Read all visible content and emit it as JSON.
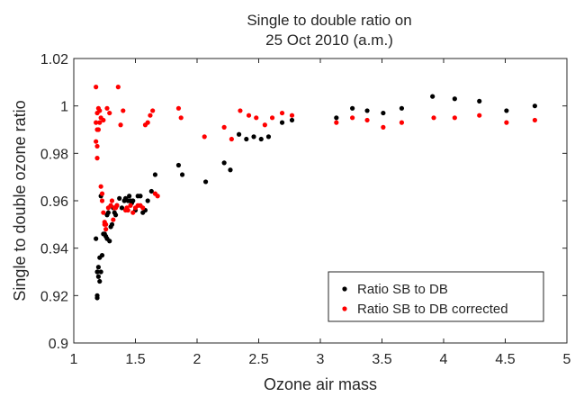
{
  "chart_data": {
    "type": "scatter",
    "title_lines": [
      "Single to double ratio on",
      "25  Oct 2010 (a.m.)"
    ],
    "xlabel": "Ozone air mass",
    "ylabel": "Single to double ozone ratio",
    "xlim": [
      1,
      5
    ],
    "ylim": [
      0.9,
      1.02
    ],
    "x_ticks": [
      1,
      1.5,
      2,
      2.5,
      3,
      3.5,
      4,
      4.5,
      5
    ],
    "x_tick_labels": [
      "1",
      "1.5",
      "2",
      "2.5",
      "3",
      "3.5",
      "4",
      "4.5",
      "5"
    ],
    "y_ticks": [
      0.9,
      0.92,
      0.94,
      0.96,
      0.98,
      1.0,
      1.02
    ],
    "y_tick_labels": [
      "0.9",
      "0.92",
      "0.94",
      "0.96",
      "0.98",
      "1",
      "1.02"
    ],
    "grid": false,
    "legend_position": "bottom-right",
    "series": [
      {
        "name": "Ratio SB to DB",
        "color": "#000000",
        "x": [
          1.18,
          1.19,
          1.19,
          1.19,
          1.2,
          1.2,
          1.21,
          1.21,
          1.22,
          1.22,
          1.23,
          1.24,
          1.25,
          1.26,
          1.27,
          1.27,
          1.28,
          1.29,
          1.3,
          1.31,
          1.32,
          1.33,
          1.34,
          1.35,
          1.37,
          1.39,
          1.41,
          1.42,
          1.44,
          1.45,
          1.46,
          1.47,
          1.48,
          1.5,
          1.52,
          1.54,
          1.56,
          1.58,
          1.6,
          1.63,
          1.66,
          1.85,
          1.88,
          2.07,
          2.22,
          2.27,
          2.34,
          2.4,
          2.46,
          2.52,
          2.58,
          2.69,
          2.77,
          3.13,
          3.26,
          3.38,
          3.51,
          3.66,
          3.91,
          4.09,
          4.29,
          4.51,
          4.74
        ],
        "y": [
          0.944,
          0.919,
          0.92,
          0.93,
          0.932,
          0.928,
          0.926,
          0.936,
          0.962,
          0.93,
          0.937,
          0.946,
          0.946,
          0.945,
          0.944,
          0.954,
          0.955,
          0.943,
          0.949,
          0.95,
          0.957,
          0.955,
          0.954,
          0.958,
          0.961,
          0.957,
          0.96,
          0.961,
          0.96,
          0.962,
          0.96,
          0.959,
          0.96,
          0.956,
          0.962,
          0.962,
          0.955,
          0.956,
          0.96,
          0.964,
          0.971,
          0.975,
          0.971,
          0.968,
          0.976,
          0.973,
          0.988,
          0.986,
          0.987,
          0.986,
          0.987,
          0.993,
          0.994,
          0.995,
          0.999,
          0.998,
          0.997,
          0.999,
          1.004,
          1.003,
          1.002,
          0.998,
          1.0
        ]
      },
      {
        "name": "Ratio SB to DB corrected",
        "color": "#ff0000",
        "x": [
          1.18,
          1.18,
          1.18,
          1.19,
          1.19,
          1.19,
          1.19,
          1.2,
          1.2,
          1.21,
          1.21,
          1.22,
          1.22,
          1.23,
          1.23,
          1.24,
          1.24,
          1.25,
          1.25,
          1.26,
          1.26,
          1.27,
          1.28,
          1.29,
          1.3,
          1.31,
          1.32,
          1.33,
          1.34,
          1.35,
          1.36,
          1.38,
          1.4,
          1.42,
          1.43,
          1.44,
          1.46,
          1.48,
          1.5,
          1.52,
          1.54,
          1.56,
          1.58,
          1.6,
          1.62,
          1.64,
          1.66,
          1.68,
          1.85,
          1.87,
          2.06,
          2.22,
          2.28,
          2.35,
          2.42,
          2.48,
          2.55,
          2.61,
          2.69,
          2.77,
          3.13,
          3.26,
          3.38,
          3.51,
          3.66,
          3.92,
          4.09,
          4.29,
          4.51,
          4.74
        ],
        "y": [
          1.008,
          0.993,
          0.985,
          0.997,
          0.99,
          0.983,
          0.978,
          0.999,
          0.99,
          0.998,
          0.993,
          0.995,
          0.966,
          0.963,
          0.96,
          0.955,
          0.994,
          0.951,
          0.95,
          0.948,
          0.95,
          0.999,
          0.957,
          0.997,
          0.958,
          0.96,
          0.952,
          0.957,
          0.957,
          0.958,
          1.008,
          0.992,
          0.998,
          0.956,
          0.957,
          0.956,
          0.958,
          0.955,
          0.957,
          0.958,
          0.958,
          0.957,
          0.992,
          0.993,
          0.996,
          0.998,
          0.963,
          0.962,
          0.999,
          0.995,
          0.987,
          0.991,
          0.986,
          0.998,
          0.996,
          0.995,
          0.992,
          0.995,
          0.997,
          0.996,
          0.993,
          0.995,
          0.994,
          0.991,
          0.993,
          0.995,
          0.995,
          0.996,
          0.993,
          0.994
        ]
      }
    ]
  }
}
